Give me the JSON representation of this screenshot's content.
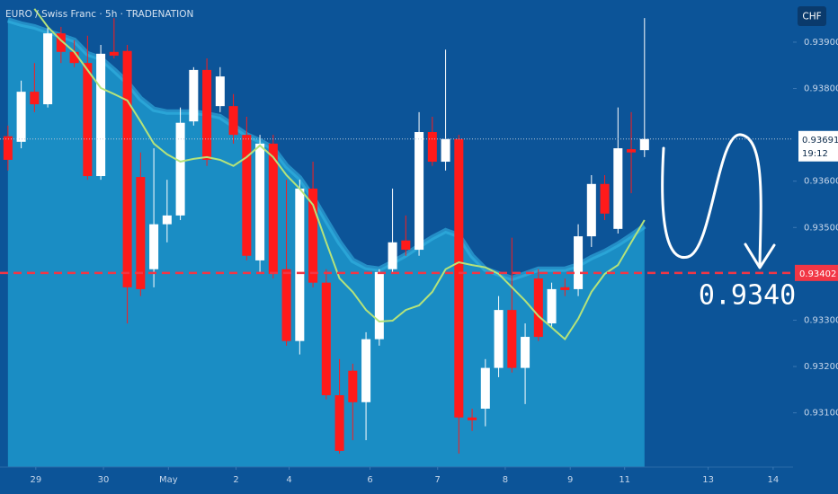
{
  "chart_data": {
    "type": "candlestick",
    "title": "EURO / Swiss Franc · 5h · TRADENATION",
    "currency": "CHF",
    "x": [
      0,
      1,
      2,
      3,
      4,
      5,
      6,
      7,
      8,
      9,
      10,
      11,
      12,
      13,
      14,
      15,
      16,
      17,
      18,
      19,
      20,
      21,
      22,
      23,
      24,
      25,
      26,
      27,
      28,
      29,
      30,
      31,
      32,
      33,
      34,
      35,
      36,
      37,
      38,
      39,
      40,
      41,
      42,
      43,
      44,
      45,
      46,
      47,
      48
    ],
    "open": [
      0.93697,
      0.93685,
      0.93793,
      0.93766,
      0.93919,
      0.93879,
      0.93855,
      0.93611,
      0.93879,
      0.93881,
      0.93609,
      0.9341,
      0.93507,
      0.93526,
      0.93729,
      0.9384,
      0.93762,
      0.93762,
      0.937,
      0.93429,
      0.93681,
      0.9341,
      0.93255,
      0.93584,
      0.93381,
      0.93138,
      0.93191,
      0.93123,
      0.93259,
      0.9341,
      0.93472,
      0.93452,
      0.93706,
      0.93642,
      0.93691,
      0.9309,
      0.93109,
      0.93197,
      0.93322,
      0.93197,
      0.9339,
      0.93293,
      0.93371,
      0.93367,
      0.93481,
      0.93594,
      0.93497,
      0.93669,
      0.93667
    ],
    "high": [
      0.9372,
      0.93817,
      0.93855,
      0.93933,
      0.93933,
      0.93904,
      0.93914,
      0.93894,
      0.93952,
      0.93894,
      0.93662,
      0.93671,
      0.93603,
      0.93759,
      0.93846,
      0.93865,
      0.93846,
      0.93788,
      0.93739,
      0.937,
      0.937,
      0.93603,
      0.93603,
      0.93642,
      0.9341,
      0.93216,
      0.93206,
      0.93274,
      0.9341,
      0.93584,
      0.93526,
      0.93749,
      0.93739,
      0.93884,
      0.937,
      0.93109,
      0.93216,
      0.93352,
      0.93478,
      0.93293,
      0.9341,
      0.93381,
      0.9339,
      0.93507,
      0.93613,
      0.93613,
      0.93759,
      0.93749,
      0.93952
    ],
    "low": [
      0.93623,
      0.93671,
      0.93749,
      0.93759,
      0.93855,
      0.93846,
      0.93603,
      0.93603,
      0.93865,
      0.93293,
      0.93352,
      0.93371,
      0.93468,
      0.93516,
      0.9372,
      0.93633,
      0.93749,
      0.93681,
      0.93429,
      0.934,
      0.9339,
      0.93245,
      0.93226,
      0.93371,
      0.93129,
      0.93012,
      0.93041,
      0.93041,
      0.93245,
      0.934,
      0.93439,
      0.93439,
      0.93633,
      0.93623,
      0.93012,
      0.93061,
      0.93071,
      0.93177,
      0.93187,
      0.93119,
      0.93255,
      0.93284,
      0.93352,
      0.93352,
      0.93458,
      0.93516,
      0.93487,
      0.93574,
      0.93652
    ],
    "close": [
      0.93646,
      0.93793,
      0.93766,
      0.93919,
      0.93879,
      0.93855,
      0.93611,
      0.93875,
      0.93871,
      0.93371,
      0.93367,
      0.93507,
      0.93526,
      0.93726,
      0.9384,
      0.93646,
      0.93826,
      0.937,
      0.93439,
      0.93681,
      0.934,
      0.93255,
      0.93584,
      0.93381,
      0.93138,
      0.93018,
      0.93123,
      0.93259,
      0.93404,
      0.93468,
      0.93452,
      0.93706,
      0.93642,
      0.93691,
      0.9309,
      0.93084,
      0.93197,
      0.93322,
      0.93197,
      0.93264,
      0.93264,
      0.93367,
      0.93365,
      0.93481,
      0.93594,
      0.9353,
      0.93671,
      0.93662,
      0.93691
    ],
    "up_color": "#ffffff",
    "down_color": "#ff1a1a",
    "area": {
      "color": "#1a8dc4",
      "edge_color": "#35b6e4",
      "values": [
        0.93948,
        0.93939,
        0.93933,
        0.93923,
        0.93914,
        0.93904,
        0.93875,
        0.93865,
        0.9384,
        0.93813,
        0.93778,
        0.93755,
        0.93749,
        0.93749,
        0.93749,
        0.93745,
        0.93739,
        0.9372,
        0.937,
        0.93687,
        0.93671,
        0.93633,
        0.93607,
        0.93565,
        0.93516,
        0.93468,
        0.93429,
        0.93414,
        0.9341,
        0.93425,
        0.93441,
        0.9346,
        0.93478,
        0.93493,
        0.93483,
        0.93439,
        0.9341,
        0.934,
        0.9339,
        0.934,
        0.9341,
        0.9341,
        0.9341,
        0.93419,
        0.93435,
        0.93448,
        0.93464,
        0.93483,
        0.93503
      ]
    },
    "ma": {
      "color": "#b5e37a",
      "values": [
        null,
        null,
        0.93972,
        0.93933,
        0.93904,
        0.93879,
        0.9384,
        0.93801,
        0.93788,
        0.93774,
        0.93729,
        0.93681,
        0.93658,
        0.93642,
        0.93648,
        0.93652,
        0.93646,
        0.93633,
        0.93652,
        0.93677,
        0.93652,
        0.93613,
        0.93584,
        0.93549,
        0.93468,
        0.9339,
        0.93361,
        0.93322,
        0.93297,
        0.93299,
        0.93322,
        0.93332,
        0.93361,
        0.9341,
        0.93425,
        0.93419,
        0.93414,
        0.934,
        0.93371,
        0.93342,
        0.93309,
        0.93284,
        0.93259,
        0.93303,
        0.93361,
        0.934,
        0.93419,
        0.93468,
        0.93516
      ]
    },
    "last_price": {
      "value": 0.93691,
      "countdown": "19:12"
    },
    "target_line": {
      "value": 0.93402,
      "color": "#f23645"
    },
    "annotation": "0.9340",
    "xlim": [
      -0.6,
      59.2
    ],
    "xticks": [
      {
        "value": 2.1,
        "label": "29"
      },
      {
        "value": 7.2,
        "label": "30"
      },
      {
        "value": 12.1,
        "label": "May"
      },
      {
        "value": 17.2,
        "label": "2"
      },
      {
        "value": 21.2,
        "label": "4"
      },
      {
        "value": 27.3,
        "label": "6"
      },
      {
        "value": 32.4,
        "label": "7"
      },
      {
        "value": 37.5,
        "label": "8"
      },
      {
        "value": 42.4,
        "label": "9"
      },
      {
        "value": 46.5,
        "label": "11"
      },
      {
        "value": 52.8,
        "label": "13"
      },
      {
        "value": 57.7,
        "label": "14"
      }
    ],
    "ylim": [
      0.92983,
      0.93991
    ],
    "yticks": [
      {
        "value": 0.939,
        "label": "0.93900"
      },
      {
        "value": 0.938,
        "label": "0.93800"
      },
      {
        "value": 0.936,
        "label": "0.93600"
      },
      {
        "value": 0.935,
        "label": "0.93500"
      },
      {
        "value": 0.933,
        "label": "0.93300"
      },
      {
        "value": 0.932,
        "label": "0.93200"
      },
      {
        "value": 0.931,
        "label": "0.93100"
      }
    ]
  }
}
